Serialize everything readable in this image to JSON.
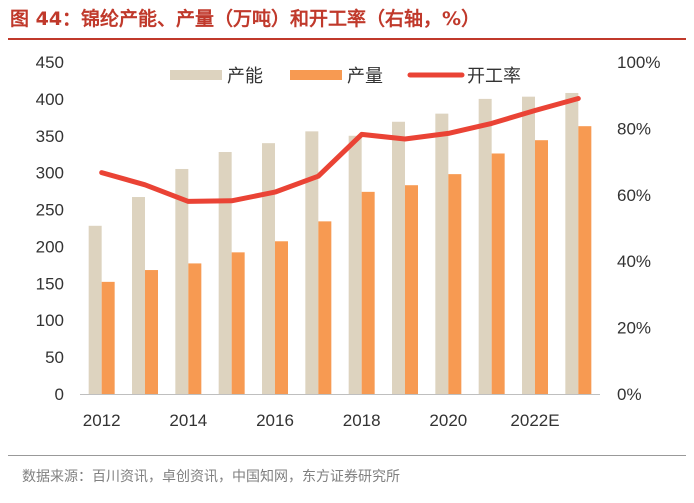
{
  "figure": {
    "title": "图 44：锦纶产能、产量（万吨）和开工率（右轴，%）",
    "source": "数据来源：百川资讯，卓创资讯，中国知网，东方证券研究所"
  },
  "chart_data": {
    "type": "bar",
    "categories": [
      "2012",
      "2013",
      "2014",
      "2015",
      "2016",
      "2017",
      "2018",
      "2019",
      "2020",
      "2021",
      "2022E",
      "2023E"
    ],
    "x_tick_labels": [
      "2012",
      "",
      "2014",
      "",
      "2016",
      "",
      "2018",
      "",
      "2020",
      "",
      "2022E",
      ""
    ],
    "series": [
      {
        "name": "产能",
        "type": "bar",
        "axis": "left",
        "color": "#ddd3bf",
        "values": [
          228,
          267,
          305,
          328,
          340,
          356,
          350,
          369,
          380,
          400,
          403,
          408
        ]
      },
      {
        "name": "产量",
        "type": "bar",
        "axis": "left",
        "color": "#f79a52",
        "values": [
          152,
          168,
          177,
          192,
          207,
          234,
          274,
          283,
          298,
          326,
          344,
          363
        ]
      },
      {
        "name": "开工率",
        "type": "line",
        "axis": "right",
        "color": "#ea4335",
        "values": [
          66.7,
          63.0,
          58.0,
          58.2,
          60.8,
          65.6,
          78.2,
          76.8,
          78.5,
          81.5,
          85.4,
          89.0
        ]
      }
    ],
    "y_left": {
      "min": 0,
      "max": 450,
      "step": 50,
      "tick_labels": [
        "0",
        "50",
        "100",
        "150",
        "200",
        "250",
        "300",
        "350",
        "400",
        "450"
      ]
    },
    "y_right": {
      "min": 0,
      "max": 100,
      "step": 20,
      "tick_labels": [
        "0%",
        "20%",
        "40%",
        "60%",
        "80%",
        "100%"
      ]
    },
    "legend": {
      "position": "top-center",
      "labels": [
        "产能",
        "产量",
        "开工率"
      ]
    },
    "grid": false
  }
}
